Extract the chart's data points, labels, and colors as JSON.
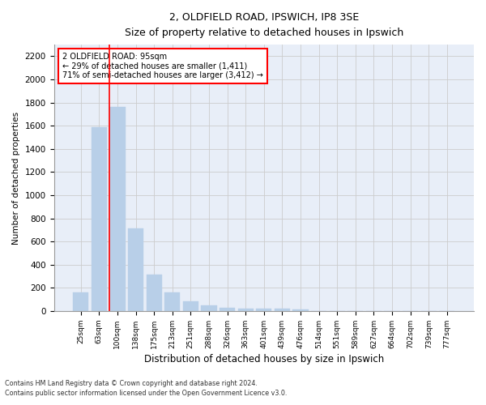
{
  "title1": "2, OLDFIELD ROAD, IPSWICH, IP8 3SE",
  "title2": "Size of property relative to detached houses in Ipswich",
  "xlabel": "Distribution of detached houses by size in Ipswich",
  "ylabel": "Number of detached properties",
  "bar_labels": [
    "25sqm",
    "63sqm",
    "100sqm",
    "138sqm",
    "175sqm",
    "213sqm",
    "251sqm",
    "288sqm",
    "326sqm",
    "363sqm",
    "401sqm",
    "439sqm",
    "476sqm",
    "514sqm",
    "551sqm",
    "589sqm",
    "627sqm",
    "664sqm",
    "702sqm",
    "739sqm",
    "777sqm"
  ],
  "bar_values": [
    160,
    1590,
    1760,
    710,
    315,
    160,
    85,
    50,
    30,
    20,
    20,
    20,
    15,
    0,
    0,
    0,
    0,
    0,
    0,
    0,
    0
  ],
  "bar_color": "#b8cfe8",
  "grid_color": "#cccccc",
  "background_color": "#e8eef8",
  "vline_color": "red",
  "annotation_text": "2 OLDFIELD ROAD: 95sqm\n← 29% of detached houses are smaller (1,411)\n71% of semi-detached houses are larger (3,412) →",
  "annotation_box_color": "white",
  "annotation_box_edge": "red",
  "ylim": [
    0,
    2300
  ],
  "yticks": [
    0,
    200,
    400,
    600,
    800,
    1000,
    1200,
    1400,
    1600,
    1800,
    2000,
    2200
  ],
  "footer1": "Contains HM Land Registry data © Crown copyright and database right 2024.",
  "footer2": "Contains public sector information licensed under the Open Government Licence v3.0."
}
